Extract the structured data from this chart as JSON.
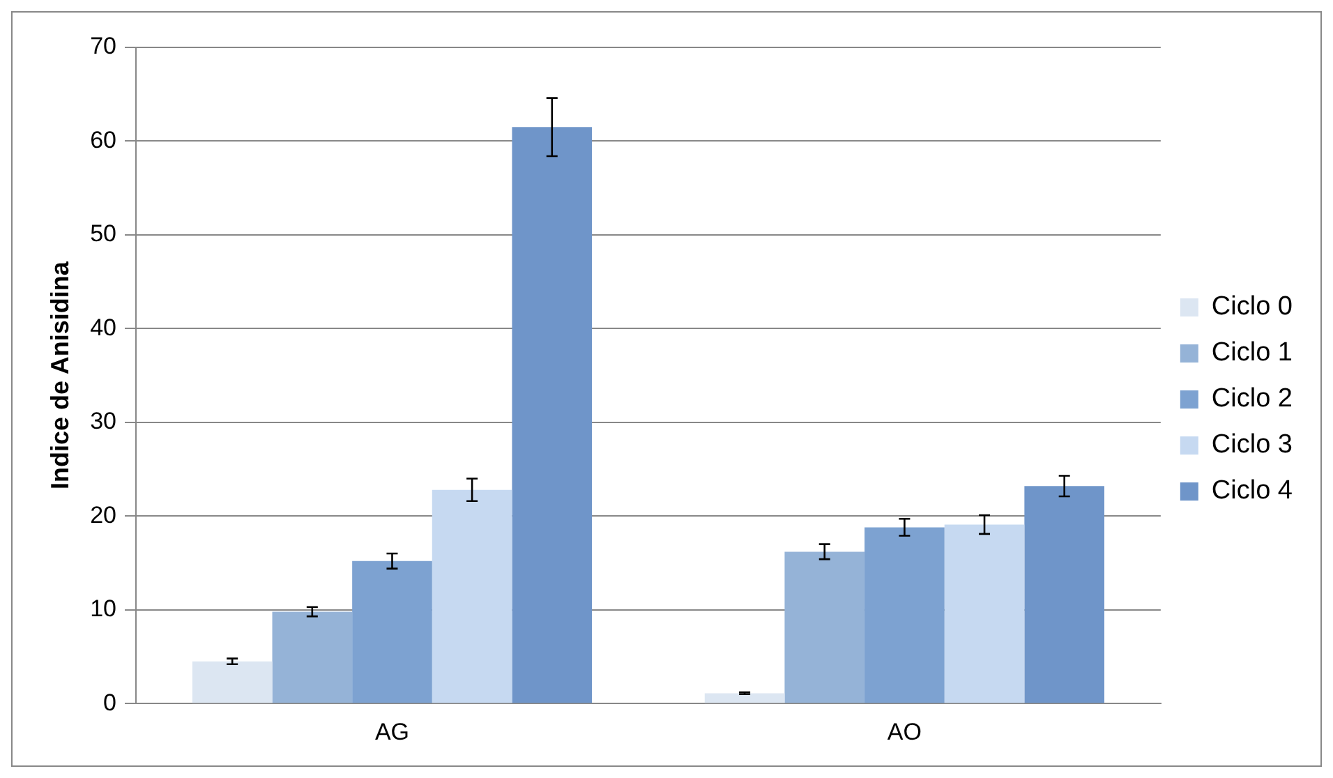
{
  "chart_data": {
    "type": "bar",
    "ylabel": "Indice de Anisidina",
    "categories": [
      "AG",
      "AO"
    ],
    "series": [
      {
        "name": "Ciclo 0",
        "color": "#dce6f2",
        "values": [
          4.5,
          1.1
        ],
        "errors": [
          0.3,
          0.1
        ]
      },
      {
        "name": "Ciclo 1",
        "color": "#95b3d7",
        "values": [
          9.8,
          16.2
        ],
        "errors": [
          0.5,
          0.8
        ]
      },
      {
        "name": "Ciclo 2",
        "color": "#7da2d1",
        "values": [
          15.2,
          18.8
        ],
        "errors": [
          0.8,
          0.9
        ]
      },
      {
        "name": "Ciclo 3",
        "color": "#c6d9f1",
        "values": [
          22.8,
          19.1
        ],
        "errors": [
          1.2,
          1.0
        ]
      },
      {
        "name": "Ciclo 4",
        "color": "#6f95c9",
        "values": [
          61.5,
          23.2
        ],
        "errors": [
          3.1,
          1.1
        ]
      }
    ],
    "ylim": [
      0,
      70
    ],
    "yticks": [
      0,
      10,
      20,
      30,
      40,
      50,
      60,
      70
    ],
    "grid": "y",
    "legend": "right"
  }
}
